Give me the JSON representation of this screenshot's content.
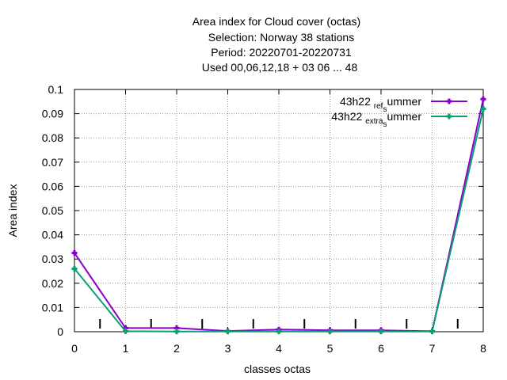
{
  "chart_data": {
    "type": "line",
    "title_lines": [
      "Area index  for Cloud cover (octas)",
      "Selection: Norway      38 stations",
      "Period: 20220701-20220731",
      "Used  00,06,12,18  + 03 06 ... 48"
    ],
    "xlabel": "classes octas",
    "ylabel": "Area index",
    "xlim": [
      0,
      8
    ],
    "ylim": [
      0,
      0.1
    ],
    "xticks": [
      "0",
      "1",
      "2",
      "3",
      "4",
      "5",
      "6",
      "7",
      "8"
    ],
    "yticks": [
      "0",
      "0.01",
      "0.02",
      "0.03",
      "0.04",
      "0.05",
      "0.06",
      "0.07",
      "0.08",
      "0.09",
      "0.1"
    ],
    "grid": true,
    "legend_position": "top-right",
    "class_separators": [
      0.5,
      1.5,
      2.5,
      3.5,
      4.5,
      5.5,
      6.5,
      7.5
    ],
    "x": [
      0,
      1,
      2,
      3,
      4,
      5,
      6,
      7,
      8
    ],
    "series": [
      {
        "name": "43h22_ref_summer",
        "legend_parts": [
          "43h22 ",
          "ref",
          "s",
          "ummer"
        ],
        "color": "#8a00c8",
        "values": [
          0.0325,
          0.0015,
          0.0015,
          0.0003,
          0.0009,
          0.0006,
          0.0006,
          0.0002,
          0.096
        ]
      },
      {
        "name": "43h22_extra_summer",
        "legend_parts": [
          "43h22 ",
          "extra",
          "s",
          "ummer"
        ],
        "color": "#0a9e76",
        "values": [
          0.026,
          0.0002,
          0.0001,
          0.0001,
          0.0001,
          0.0001,
          0.0001,
          0.0001,
          0.092
        ]
      }
    ]
  }
}
